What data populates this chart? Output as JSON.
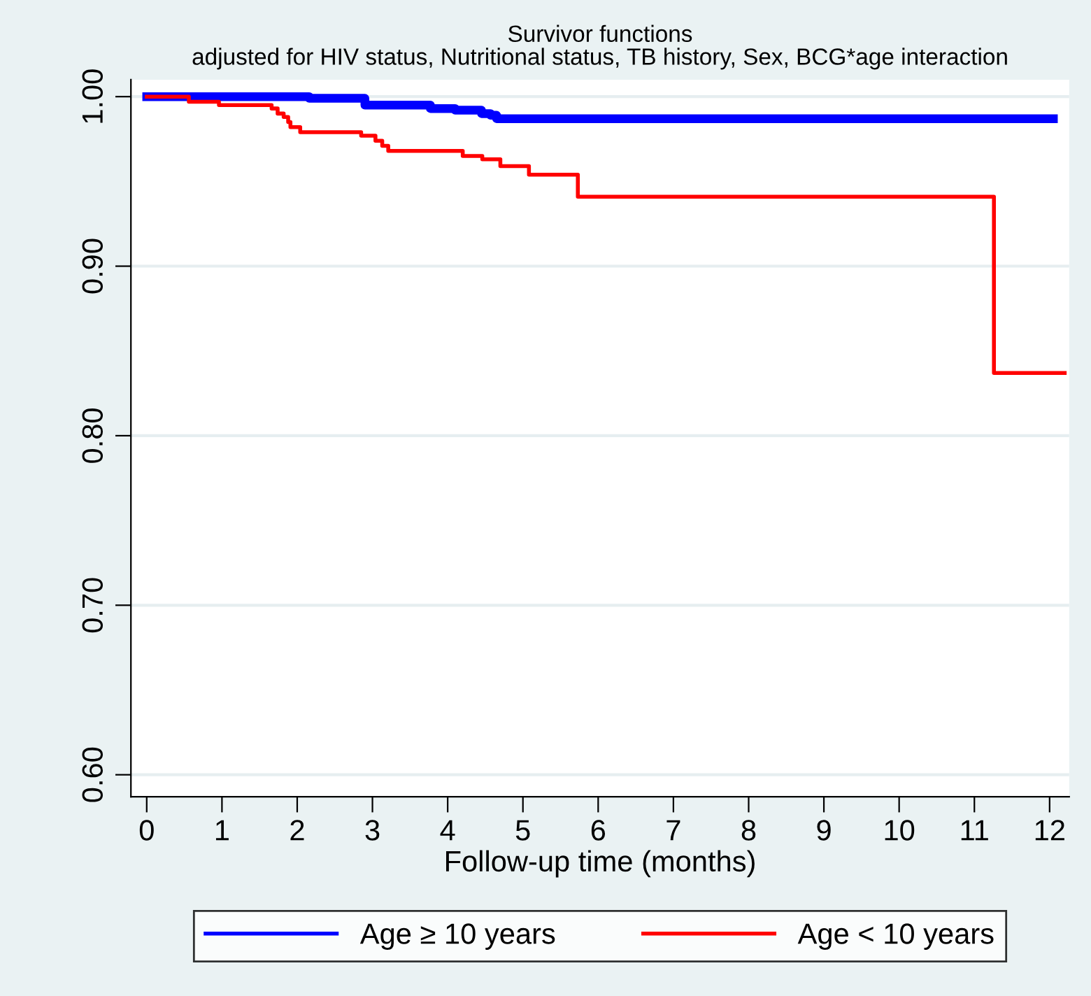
{
  "chart_data": {
    "type": "step",
    "title": "Survivor functions",
    "subtitle": "adjusted for HIV status, Nutritional status, TB history, Sex, BCG*age interaction",
    "xlabel": "Follow-up time (months)",
    "series": [
      {
        "name": "Age ≥ 10 years",
        "color": "#0000ff",
        "x": [
          0,
          2.16,
          2.9,
          3.77,
          4.1,
          4.45,
          4.57,
          4.65,
          12.05
        ],
        "values": [
          1.0,
          0.999,
          0.995,
          0.993,
          0.992,
          0.99,
          0.989,
          0.987,
          0.987
        ]
      },
      {
        "name": "Age < 10 years",
        "color": "#ff0000",
        "x": [
          0,
          0.56,
          0.96,
          1.66,
          1.74,
          1.82,
          1.88,
          1.91,
          2.04,
          2.85,
          3.04,
          3.13,
          3.21,
          4.2,
          4.46,
          4.7,
          5.08,
          5.73,
          11.26,
          12.2
        ],
        "values": [
          1.0,
          0.997,
          0.995,
          0.993,
          0.99,
          0.988,
          0.985,
          0.982,
          0.979,
          0.977,
          0.974,
          0.971,
          0.968,
          0.965,
          0.963,
          0.959,
          0.954,
          0.941,
          0.837,
          0.837
        ]
      }
    ],
    "xlim": [
      -0.21,
      12.26
    ],
    "xticks": [
      0,
      1,
      2,
      3,
      4,
      5,
      6,
      7,
      8,
      9,
      10,
      11,
      12
    ],
    "ylim": [
      0.587,
      1.01
    ],
    "yticks": [
      {
        "value": 0.6,
        "label": "0.60"
      },
      {
        "value": 0.7,
        "label": "0.70"
      },
      {
        "value": 0.8,
        "label": "0.80"
      },
      {
        "value": 0.9,
        "label": "0.90"
      },
      {
        "value": 1.0,
        "label": "1.00"
      }
    ],
    "grid": "y",
    "legend": "bottom",
    "marker": "none",
    "line_style": "solid"
  }
}
